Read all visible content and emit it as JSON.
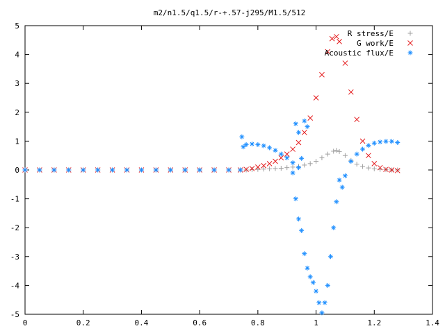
{
  "chart_data": {
    "type": "scatter",
    "title": "m2/n1.5/q1.5/r-+.57-j295/M1.5/512",
    "xlabel": "",
    "ylabel": "",
    "xlim": [
      0,
      1.4
    ],
    "ylim": [
      -5,
      5
    ],
    "xticks": [
      "0",
      "0.2",
      "0.4",
      "0.6",
      "0.8",
      "1",
      "1.2",
      "1.4"
    ],
    "yticks": [
      "-5",
      "-4",
      "-3",
      "-2",
      "-1",
      "0",
      "1",
      "2",
      "3",
      "4",
      "5"
    ],
    "grid": false,
    "legend_position": "top-right",
    "series": [
      {
        "name": "R stress/E",
        "marker": "+",
        "color": "#a0a0a0",
        "points": [
          [
            0.0,
            0.0
          ],
          [
            0.05,
            0.0
          ],
          [
            0.1,
            0.0
          ],
          [
            0.15,
            0.0
          ],
          [
            0.2,
            0.0
          ],
          [
            0.25,
            0.0
          ],
          [
            0.3,
            0.0
          ],
          [
            0.35,
            0.0
          ],
          [
            0.4,
            0.0
          ],
          [
            0.45,
            0.0
          ],
          [
            0.5,
            0.0
          ],
          [
            0.55,
            0.0
          ],
          [
            0.6,
            0.0
          ],
          [
            0.65,
            0.0
          ],
          [
            0.7,
            0.0
          ],
          [
            0.74,
            0.0
          ],
          [
            0.76,
            0.0
          ],
          [
            0.78,
            0.01
          ],
          [
            0.8,
            0.02
          ],
          [
            0.82,
            0.03
          ],
          [
            0.84,
            0.04
          ],
          [
            0.86,
            0.05
          ],
          [
            0.88,
            0.06
          ],
          [
            0.9,
            0.08
          ],
          [
            0.92,
            0.1
          ],
          [
            0.94,
            0.13
          ],
          [
            0.96,
            0.17
          ],
          [
            0.98,
            0.22
          ],
          [
            1.0,
            0.3
          ],
          [
            1.02,
            0.42
          ],
          [
            1.04,
            0.55
          ],
          [
            1.06,
            0.65
          ],
          [
            1.07,
            0.68
          ],
          [
            1.08,
            0.64
          ],
          [
            1.1,
            0.5
          ],
          [
            1.12,
            0.33
          ],
          [
            1.14,
            0.2
          ],
          [
            1.16,
            0.12
          ],
          [
            1.18,
            0.07
          ],
          [
            1.2,
            0.04
          ],
          [
            1.22,
            0.02
          ],
          [
            1.24,
            0.01
          ],
          [
            1.26,
            0.0
          ],
          [
            1.28,
            0.0
          ]
        ]
      },
      {
        "name": "G work/E",
        "marker": "x",
        "color": "#e41a1c",
        "points": [
          [
            0.0,
            0.0
          ],
          [
            0.05,
            0.0
          ],
          [
            0.1,
            0.0
          ],
          [
            0.15,
            0.0
          ],
          [
            0.2,
            0.0
          ],
          [
            0.25,
            0.0
          ],
          [
            0.3,
            0.0
          ],
          [
            0.35,
            0.0
          ],
          [
            0.4,
            0.0
          ],
          [
            0.45,
            0.0
          ],
          [
            0.5,
            0.0
          ],
          [
            0.55,
            0.0
          ],
          [
            0.6,
            0.0
          ],
          [
            0.65,
            0.0
          ],
          [
            0.7,
            0.0
          ],
          [
            0.74,
            0.0
          ],
          [
            0.76,
            0.02
          ],
          [
            0.78,
            0.05
          ],
          [
            0.8,
            0.1
          ],
          [
            0.82,
            0.15
          ],
          [
            0.84,
            0.22
          ],
          [
            0.86,
            0.3
          ],
          [
            0.88,
            0.42
          ],
          [
            0.9,
            0.55
          ],
          [
            0.92,
            0.72
          ],
          [
            0.94,
            0.95
          ],
          [
            0.96,
            1.3
          ],
          [
            0.98,
            1.8
          ],
          [
            1.0,
            2.5
          ],
          [
            1.02,
            3.3
          ],
          [
            1.04,
            4.1
          ],
          [
            1.055,
            4.55
          ],
          [
            1.07,
            4.62
          ],
          [
            1.08,
            4.45
          ],
          [
            1.1,
            3.7
          ],
          [
            1.12,
            2.7
          ],
          [
            1.14,
            1.75
          ],
          [
            1.16,
            1.0
          ],
          [
            1.18,
            0.5
          ],
          [
            1.2,
            0.22
          ],
          [
            1.22,
            0.08
          ],
          [
            1.24,
            0.02
          ],
          [
            1.26,
            0.0
          ],
          [
            1.28,
            -0.02
          ]
        ]
      },
      {
        "name": "Acoustic flux/E",
        "marker": "*",
        "color": "#1f8fff",
        "points": [
          [
            0.0,
            0.0
          ],
          [
            0.05,
            0.0
          ],
          [
            0.1,
            0.0
          ],
          [
            0.15,
            0.0
          ],
          [
            0.2,
            0.0
          ],
          [
            0.25,
            0.0
          ],
          [
            0.3,
            0.0
          ],
          [
            0.35,
            0.0
          ],
          [
            0.4,
            0.0
          ],
          [
            0.45,
            0.0
          ],
          [
            0.5,
            0.0
          ],
          [
            0.55,
            0.0
          ],
          [
            0.6,
            0.0
          ],
          [
            0.65,
            0.0
          ],
          [
            0.7,
            0.0
          ],
          [
            0.74,
            0.0
          ],
          [
            0.745,
            1.15
          ],
          [
            0.75,
            0.8
          ],
          [
            0.76,
            0.88
          ],
          [
            0.78,
            0.9
          ],
          [
            0.8,
            0.88
          ],
          [
            0.82,
            0.84
          ],
          [
            0.84,
            0.77
          ],
          [
            0.86,
            0.68
          ],
          [
            0.88,
            0.55
          ],
          [
            0.9,
            0.42
          ],
          [
            0.92,
            0.25
          ],
          [
            0.94,
            0.08
          ],
          [
            0.95,
            0.4
          ],
          [
            0.93,
            1.6
          ],
          [
            0.96,
            1.7
          ],
          [
            0.94,
            1.3
          ],
          [
            0.97,
            1.5
          ],
          [
            0.92,
            -0.1
          ],
          [
            0.93,
            -1.0
          ],
          [
            0.94,
            -1.7
          ],
          [
            0.95,
            -2.1
          ],
          [
            0.96,
            -2.9
          ],
          [
            0.97,
            -3.4
          ],
          [
            0.98,
            -3.7
          ],
          [
            0.99,
            -3.9
          ],
          [
            1.0,
            -4.2
          ],
          [
            1.01,
            -4.6
          ],
          [
            1.02,
            -4.95
          ],
          [
            1.03,
            -4.6
          ],
          [
            1.04,
            -4.0
          ],
          [
            1.05,
            -3.0
          ],
          [
            1.06,
            -2.0
          ],
          [
            1.07,
            -1.1
          ],
          [
            1.08,
            -0.35
          ],
          [
            1.09,
            -0.6
          ],
          [
            1.1,
            -0.2
          ],
          [
            1.12,
            0.3
          ],
          [
            1.14,
            0.55
          ],
          [
            1.16,
            0.72
          ],
          [
            1.18,
            0.85
          ],
          [
            1.2,
            0.93
          ],
          [
            1.22,
            0.97
          ],
          [
            1.24,
            0.99
          ],
          [
            1.26,
            0.99
          ],
          [
            1.28,
            0.95
          ]
        ]
      }
    ]
  }
}
